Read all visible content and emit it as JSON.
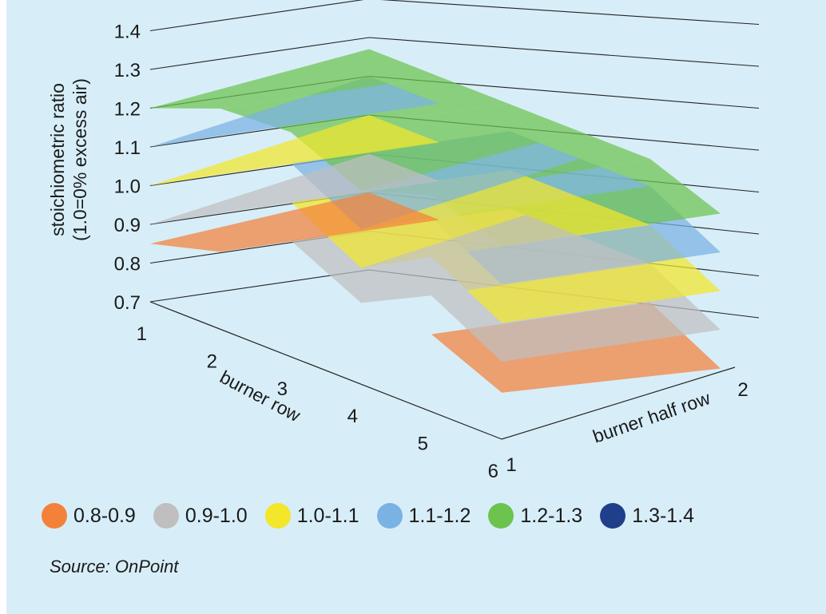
{
  "chart_data": {
    "type": "surface",
    "title": "",
    "zlabel_lines": [
      "stoichiometric ratio",
      "(1.0=0% excess air)"
    ],
    "xlabel": "burner row",
    "ylabel": "burner half row",
    "z_ticks": [
      "1.4",
      "1.3",
      "1.2",
      "1.1",
      "1.0",
      "0.9",
      "0.8",
      "0.7"
    ],
    "z_range": [
      0.7,
      1.4
    ],
    "x_ticks": [
      "1",
      "2",
      "3",
      "4",
      "5",
      "6"
    ],
    "y_ticks": [
      "1",
      "2"
    ],
    "grid": true,
    "legend_position": "bottom",
    "series": [
      {
        "name": "burner half row 1",
        "values": [
          0.85,
          1.27,
          1.28,
          0.91,
          1.26,
          0.82
        ]
      },
      {
        "name": "burner half row 2",
        "values": [
          1.27,
          1.27,
          1.27,
          1.27,
          1.27,
          0.8
        ]
      }
    ],
    "bands": [
      {
        "label": "0.8-0.9",
        "range": [
          0.8,
          0.9
        ],
        "color": "#f4813a"
      },
      {
        "label": "0.9-1.0",
        "range": [
          0.9,
          1.0
        ],
        "color": "#bfbfbf"
      },
      {
        "label": "1.0-1.1",
        "range": [
          1.0,
          1.1
        ],
        "color": "#f3e62b"
      },
      {
        "label": "1.1-1.2",
        "range": [
          1.1,
          1.2
        ],
        "color": "#7ab2e3"
      },
      {
        "label": "1.2-1.3",
        "range": [
          1.2,
          1.3
        ],
        "color": "#6cc44e"
      },
      {
        "label": "1.3-1.4",
        "range": [
          1.3,
          1.4
        ],
        "color": "#1f3f8a"
      }
    ]
  },
  "source": "Source: OnPoint"
}
